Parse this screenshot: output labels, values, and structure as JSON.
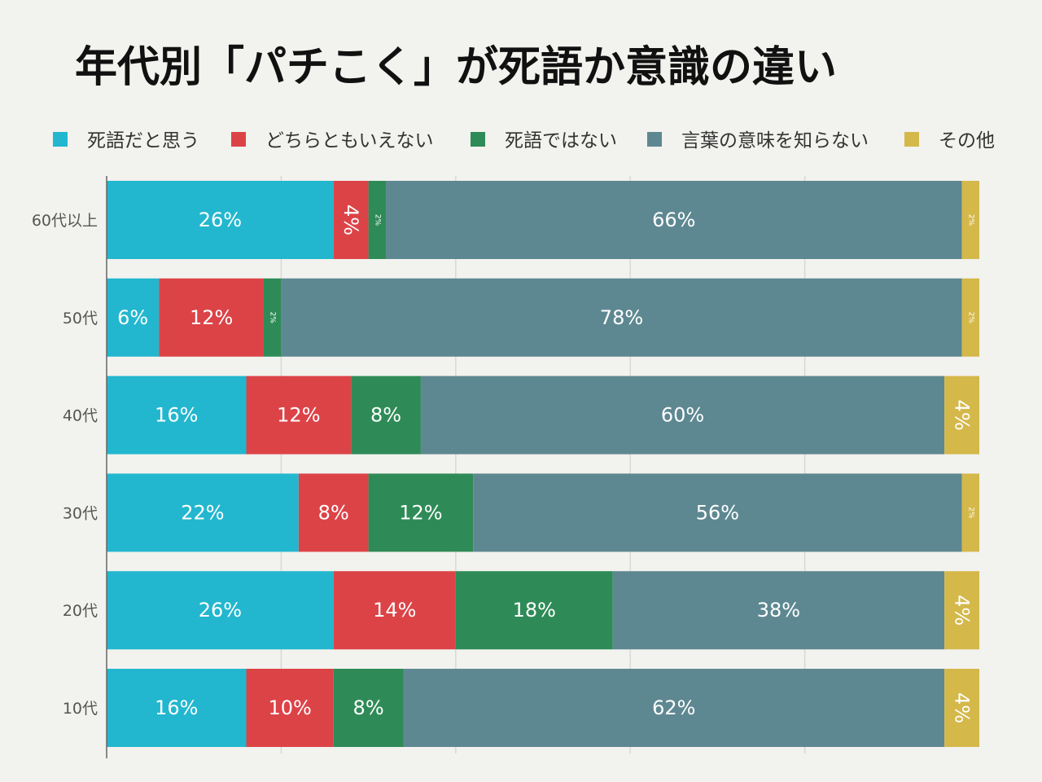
{
  "chart_data": {
    "type": "bar",
    "orientation": "horizontal",
    "stacked": true,
    "title": "年代別「パチこく」が死語か意識の違い",
    "legend_position": "top",
    "grid": true,
    "xlim": [
      0,
      100
    ],
    "value_format": "percent",
    "categories": [
      "60代以上",
      "50代",
      "40代",
      "30代",
      "20代",
      "10代"
    ],
    "series": [
      {
        "name": "死語だと思う",
        "color": "#22b7cf",
        "values": [
          26,
          6,
          16,
          22,
          26,
          16
        ]
      },
      {
        "name": "どちらともいえない",
        "color": "#dc4347",
        "values": [
          4,
          12,
          12,
          8,
          14,
          10
        ]
      },
      {
        "name": "死語ではない",
        "color": "#2e8b57",
        "values": [
          2,
          2,
          8,
          12,
          18,
          8
        ]
      },
      {
        "name": "言葉の意味を知らない",
        "color": "#5e8891",
        "values": [
          66,
          78,
          60,
          56,
          38,
          62
        ]
      },
      {
        "name": "その他",
        "color": "#d4b84a",
        "values": [
          2,
          2,
          4,
          2,
          4,
          4
        ]
      }
    ]
  }
}
